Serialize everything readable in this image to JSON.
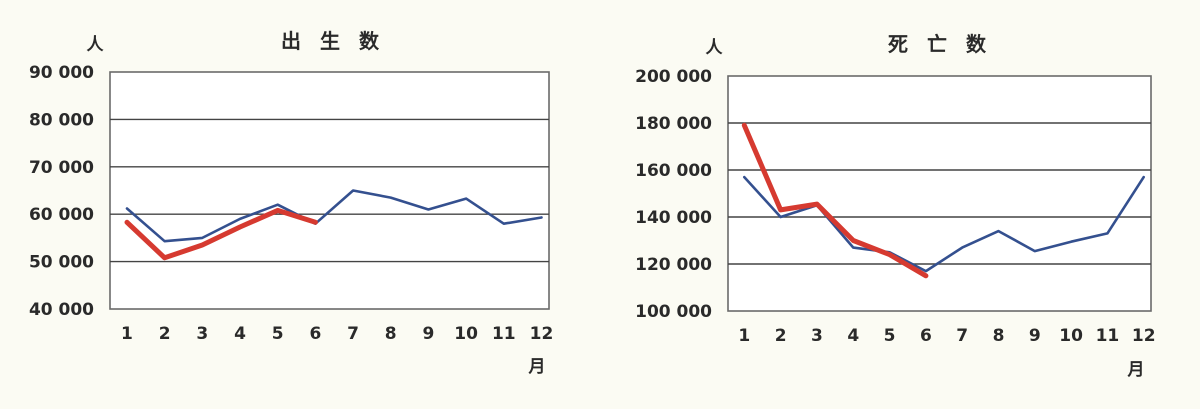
{
  "chart_data": [
    {
      "type": "line",
      "title": "出 生 数",
      "ylabel": "人",
      "xlabel": "月",
      "categories": [
        "1",
        "2",
        "3",
        "4",
        "5",
        "6",
        "7",
        "8",
        "9",
        "10",
        "11",
        "12"
      ],
      "ylim": [
        40000,
        90000
      ],
      "yticks": [
        40000,
        50000,
        60000,
        70000,
        80000,
        90000
      ],
      "ytick_labels": [
        "40 000",
        "50 000",
        "60 000",
        "70 000",
        "80 000",
        "90 000"
      ],
      "grid": true,
      "series": [
        {
          "color": "#34508f",
          "values": [
            61200,
            54300,
            55000,
            59000,
            62000,
            58000,
            65000,
            63500,
            61000,
            63300,
            58000,
            59300
          ]
        },
        {
          "color": "#d63a30",
          "values": [
            58300,
            50800,
            53500,
            57300,
            60800,
            58300,
            null,
            null,
            null,
            null,
            null,
            null
          ]
        }
      ]
    },
    {
      "type": "line",
      "title": "死 亡 数",
      "ylabel": "人",
      "xlabel": "月",
      "categories": [
        "1",
        "2",
        "3",
        "4",
        "5",
        "6",
        "7",
        "8",
        "9",
        "10",
        "11",
        "12"
      ],
      "ylim": [
        100000,
        200000
      ],
      "yticks": [
        100000,
        120000,
        140000,
        160000,
        180000,
        200000
      ],
      "ytick_labels": [
        "100 000",
        "120 000",
        "140 000",
        "160 000",
        "180 000",
        "200 000"
      ],
      "grid": true,
      "series": [
        {
          "color": "#34508f",
          "values": [
            157000,
            140000,
            145000,
            127000,
            125000,
            117000,
            127000,
            134000,
            125500,
            129500,
            133000,
            157000
          ]
        },
        {
          "color": "#d63a30",
          "values": [
            179000,
            143000,
            145500,
            130000,
            124000,
            115000,
            null,
            null,
            null,
            null,
            null,
            null
          ]
        }
      ]
    }
  ]
}
